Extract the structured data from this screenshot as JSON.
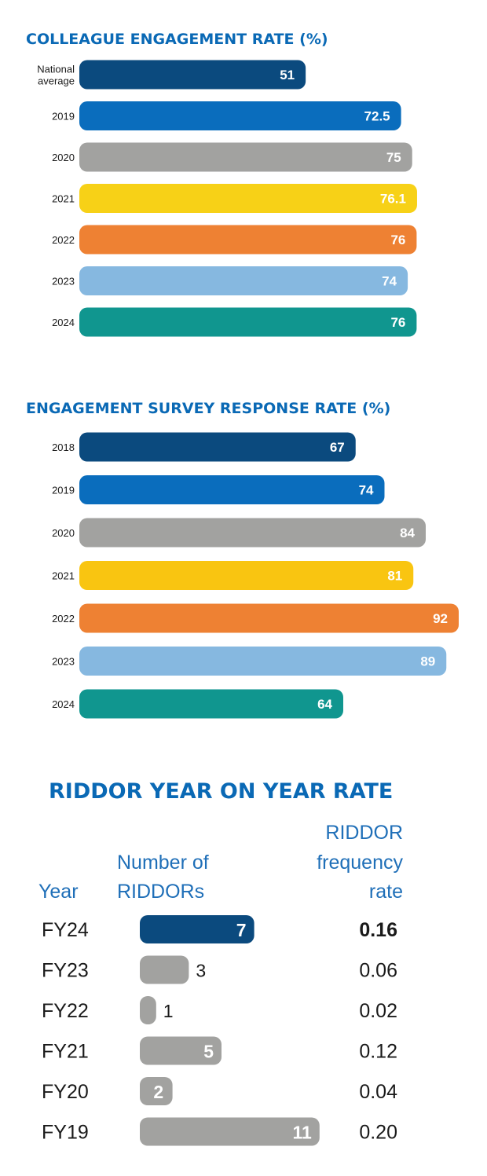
{
  "chart_data": [
    {
      "type": "bar",
      "orientation": "horizontal",
      "title": "COLLEAGUE ENGAGEMENT RATE (%)",
      "categories": [
        "National average",
        "2019",
        "2020",
        "2021",
        "2022",
        "2023",
        "2024"
      ],
      "category_lines": [
        [
          "National",
          "average"
        ],
        [
          "2019"
        ],
        [
          "2020"
        ],
        [
          "2021"
        ],
        [
          "2022"
        ],
        [
          "2023"
        ],
        [
          "2024"
        ]
      ],
      "values": [
        51,
        72.5,
        75,
        76.1,
        76,
        74,
        76
      ],
      "value_labels": [
        "51",
        "72.5",
        "75",
        "76.1",
        "76",
        "74",
        "76"
      ],
      "colors": [
        "#0b4a7e",
        "#0a6dbd",
        "#a2a2a0",
        "#f7d117",
        "#ee8133",
        "#86b8e0",
        "#10968f"
      ],
      "xlim": [
        0,
        100
      ]
    },
    {
      "type": "bar",
      "orientation": "horizontal",
      "title": "ENGAGEMENT SURVEY RESPONSE RATE (%)",
      "categories": [
        "2018",
        "2019",
        "2020",
        "2021",
        "2022",
        "2023",
        "2024"
      ],
      "values": [
        67,
        74,
        84,
        81,
        92,
        89,
        64
      ],
      "value_labels": [
        "67",
        "74",
        "84",
        "81",
        "92",
        "89",
        "64"
      ],
      "colors": [
        "#0b4a7e",
        "#0a6dbd",
        "#a2a2a0",
        "#f9c511",
        "#ee8133",
        "#86b8e0",
        "#10968f"
      ],
      "xlim": [
        0,
        100
      ]
    },
    {
      "type": "bar",
      "orientation": "horizontal",
      "title": "RIDDOR YEAR ON YEAR RATE",
      "headers": {
        "year": "Year",
        "count": [
          "Number of",
          "RIDDORs"
        ],
        "rate": [
          "RIDDOR",
          "frequency",
          "rate"
        ]
      },
      "categories": [
        "FY24",
        "FY23",
        "FY22",
        "FY21",
        "FY20",
        "FY19"
      ],
      "values": [
        7,
        3,
        1,
        5,
        2,
        11
      ],
      "value_labels": [
        "7",
        "3",
        "1",
        "5",
        "2",
        "11"
      ],
      "frequency_rates": [
        "0.16",
        "0.06",
        "0.02",
        "0.12",
        "0.04",
        "0.20"
      ],
      "highlight_category": "FY24",
      "colors": [
        "#0b4a7e",
        "#a2a2a0",
        "#a2a2a0",
        "#a2a2a0",
        "#a2a2a0",
        "#a2a2a0"
      ]
    }
  ]
}
